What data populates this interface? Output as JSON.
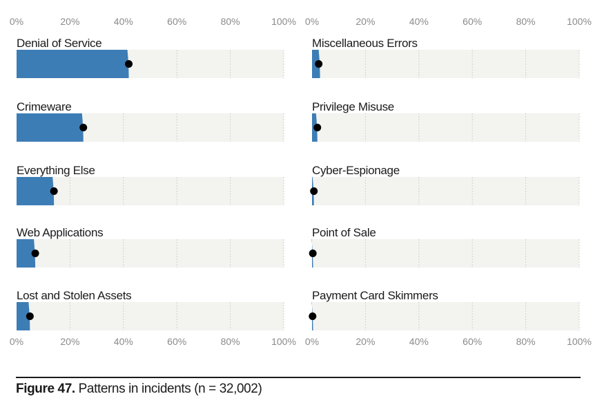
{
  "chart_data": [
    {
      "type": "bar",
      "categories": [
        "Denial of Service",
        "Crimeware",
        "Everything Else",
        "Web Applications",
        "Lost and Stolen Assets"
      ],
      "values": [
        42,
        25,
        14,
        7,
        5
      ],
      "points": [
        42,
        25,
        14,
        7,
        5
      ],
      "xlim": [
        0,
        100
      ],
      "ticks": [
        "0%",
        "20%",
        "40%",
        "60%",
        "80%",
        "100%"
      ],
      "grid": true
    },
    {
      "type": "bar",
      "categories": [
        "Miscellaneous Errors",
        "Privilege Misuse",
        "Cyber-Espionage",
        "Point of Sale",
        "Payment Card Skimmers"
      ],
      "values": [
        3,
        2,
        0.7,
        0.3,
        0.2
      ],
      "points": [
        2.5,
        2,
        0.7,
        0.3,
        0.2
      ],
      "xlim": [
        0,
        100
      ],
      "ticks": [
        "0%",
        "20%",
        "40%",
        "60%",
        "80%",
        "100%"
      ],
      "grid": true
    }
  ],
  "colors": {
    "bar": "#3d7db5",
    "track": "#f3f3ef",
    "point": "#000000",
    "grid": "#d0d0cc"
  },
  "caption": {
    "label": "Figure 47.",
    "text": "Patterns in incidents (n = 32,002)"
  }
}
